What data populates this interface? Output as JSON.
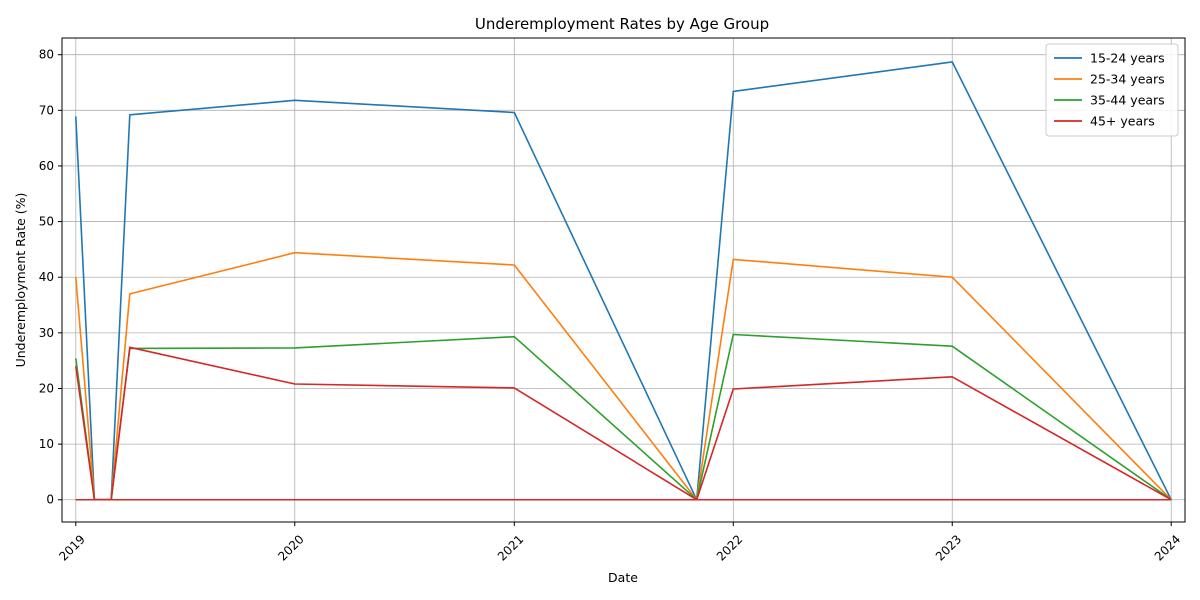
{
  "chart_data": {
    "type": "line",
    "title": "Underemployment Rates by Age Group",
    "xlabel": "Date",
    "ylabel": "Underemployment Rate (%)",
    "x_ticks": [
      "2019",
      "2020",
      "2021",
      "2022",
      "2023",
      "2024"
    ],
    "y_ticks": [
      "0",
      "10",
      "20",
      "30",
      "40",
      "50",
      "60",
      "70",
      "80"
    ],
    "xlim": [
      "2018-12-09",
      "2024-01-24"
    ],
    "ylim": [
      -4,
      83
    ],
    "grid": true,
    "legend_position": "top-right",
    "series": [
      {
        "name": "15-24 years",
        "color": "#1f77b4",
        "points": [
          [
            "2019-01-01",
            68.9
          ],
          [
            "2019-02-01",
            0
          ],
          [
            "2019-03-01",
            0
          ],
          [
            "2019-04-01",
            69.2
          ],
          [
            "2020-01-01",
            71.8
          ],
          [
            "2021-01-01",
            69.6
          ],
          [
            "2021-11-01",
            0
          ],
          [
            "2022-01-01",
            73.4
          ],
          [
            "2023-01-01",
            78.7
          ],
          [
            "2024-01-01",
            0
          ]
        ]
      },
      {
        "name": "25-34 years",
        "color": "#ff7f0e",
        "points": [
          [
            "2019-01-01",
            40.0
          ],
          [
            "2019-02-01",
            0
          ],
          [
            "2019-03-01",
            0
          ],
          [
            "2019-04-01",
            37.0
          ],
          [
            "2020-01-01",
            44.4
          ],
          [
            "2021-01-01",
            42.2
          ],
          [
            "2021-11-01",
            0
          ],
          [
            "2022-01-01",
            43.2
          ],
          [
            "2023-01-01",
            40.0
          ],
          [
            "2024-01-01",
            0
          ]
        ]
      },
      {
        "name": "35-44 years",
        "color": "#2ca02c",
        "points": [
          [
            "2019-01-01",
            25.4
          ],
          [
            "2019-02-01",
            0
          ],
          [
            "2019-03-01",
            0
          ],
          [
            "2019-04-01",
            27.2
          ],
          [
            "2020-01-01",
            27.3
          ],
          [
            "2021-01-01",
            29.3
          ],
          [
            "2021-11-01",
            0
          ],
          [
            "2022-01-01",
            29.7
          ],
          [
            "2023-01-01",
            27.6
          ],
          [
            "2024-01-01",
            0
          ]
        ]
      },
      {
        "name": "45+ years",
        "color": "#d62728",
        "points": [
          [
            "2019-01-01",
            24.0
          ],
          [
            "2019-02-01",
            0
          ],
          [
            "2019-03-01",
            0
          ],
          [
            "2019-04-01",
            27.4
          ],
          [
            "2020-01-01",
            20.8
          ],
          [
            "2021-01-01",
            20.1
          ],
          [
            "2021-11-01",
            0
          ],
          [
            "2022-01-01",
            19.9
          ],
          [
            "2023-01-01",
            22.1
          ],
          [
            "2024-01-01",
            0
          ]
        ]
      }
    ],
    "baseline": {
      "y": 0,
      "x_range": [
        "2019-01-01",
        "2024-01-01"
      ]
    }
  }
}
